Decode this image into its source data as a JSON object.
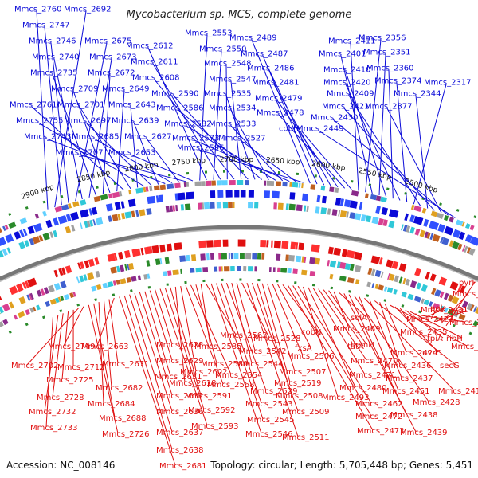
{
  "title": "Mycobacterium sp. MCS, complete genome",
  "footer": {
    "accession": "Accession: NC_008146",
    "summary": "Topology: circular; Length: 5,705,448 bp; Genes: 5,451"
  },
  "colors": {
    "forward": "#0a0ad8",
    "reverse": "#e01010",
    "backbone": "#777777",
    "tick": "#2a8a2a"
  },
  "kbp_labels": [
    "2500 kbp",
    "2550 kbp",
    "2600 kbp",
    "2650 kbp",
    "2700 kbp",
    "2750 kbp",
    "2800 kbp",
    "2850 kbp",
    "2900 kbp"
  ],
  "forward_genes": [
    "Mmcs_2760",
    "Mmcs_2692",
    "Mmcs_2747",
    "Mmcs_2746",
    "Mmcs_2675",
    "Mmcs_2740",
    "Mmcs_2673",
    "Mmcs_2735",
    "Mmcs_2672",
    "Mmcs_2709",
    "Mmcs_2649",
    "Mmcs_2761",
    "Mmcs_2701",
    "Mmcs_2643",
    "Mmcs_2755",
    "Mmcs_2697",
    "Mmcs_2639",
    "Mmcs_2743",
    "Mmcs_2685",
    "Mmcs_2627",
    "Mmcs_2707",
    "Mmcs_2653",
    "Mmcs_2553",
    "Mmcs_2612",
    "Mmcs_2550",
    "Mmcs_2611",
    "Mmcs_2548",
    "Mmcs_2608",
    "Mmcs_2547",
    "Mmcs_2590",
    "Mmcs_2535",
    "Mmcs_2586",
    "Mmcs_2534",
    "Mmcs_2582",
    "Mmcs_2533",
    "Mmcs_2573",
    "Mmcs_2527",
    "Mmcs_2596",
    "Mmcs_2489",
    "Mmcs_2487",
    "Mmcs_2486",
    "Mmcs_2481",
    "Mmcs_2479",
    "Mmcs_2478",
    "cobH",
    "Mmcs_2411",
    "Mmcs_2356",
    "Mmcs_2401",
    "Mmcs_2351",
    "Mmcs_2410",
    "Mmcs_2360",
    "Mmcs_2420",
    "Mmcs_2374",
    "Mmcs_2317",
    "Mmcs_2409",
    "Mmcs_2344",
    "Mmcs_2421",
    "Mmcs_2377",
    "Mmcs_2430",
    "Mmcs_2449"
  ],
  "reverse_genes": [
    "pyrF",
    "Mmcs_2382",
    "fmt",
    "Mmcs_2431",
    "pgk",
    "Mmcs_2389",
    "Mmcs_2423",
    "ribH",
    "tpiA",
    "Mmcs_2435",
    "uvrC",
    "Mmcs_2400",
    "Mmcs_2424",
    "Mmcs_2436",
    "secG",
    "Mmcs_2437",
    "Mmcs_2415",
    "Mmcs_2451",
    "Mmcs_2428",
    "Mmcs_2438",
    "Mmcs_2439",
    "solA",
    "Mmcs_2469",
    "hemH",
    "tatA",
    "Mmcs_2470",
    "Mmcs_2471",
    "Mmcs_2480",
    "Mmcs_2493",
    "Mmcs_2462",
    "Mmcs_2472",
    "Mmcs_2473",
    "cobN",
    "fxsA",
    "Mmcs_2506",
    "Mmcs_2507",
    "Mmcs_2519",
    "Mmcs_2508",
    "Mmcs_2509",
    "Mmcs_2511",
    "Mmcs_2528",
    "Mmcs_2542",
    "Mmcs_2544",
    "Mmcs_2529",
    "Mmcs_2543",
    "Mmcs_2545",
    "Mmcs_2546",
    "Mmcs_2563",
    "Mmcs_2585",
    "Mmcs_2589",
    "Mmcs_2554",
    "Mmcs_2568",
    "Mmcs_2602",
    "Mmcs_2618",
    "Mmcs_2591",
    "Mmcs_2592",
    "Mmcs_2593",
    "Mmcs_2628",
    "Mmcs_2629",
    "Mmcs_2631",
    "Mmcs_2632",
    "Mmcs_2636",
    "Mmcs_2637",
    "Mmcs_2638",
    "Mmcs_2681",
    "Mmcs_2663",
    "Mmcs_2671",
    "Mmcs_2682",
    "Mmcs_2684",
    "Mmcs_2688",
    "Mmcs_2726",
    "Mmcs_2749",
    "Mmcs_2702",
    "Mmcs_2712",
    "Mmcs_2725",
    "Mmcs_2728",
    "Mmcs_2732",
    "Mmcs_2733"
  ]
}
